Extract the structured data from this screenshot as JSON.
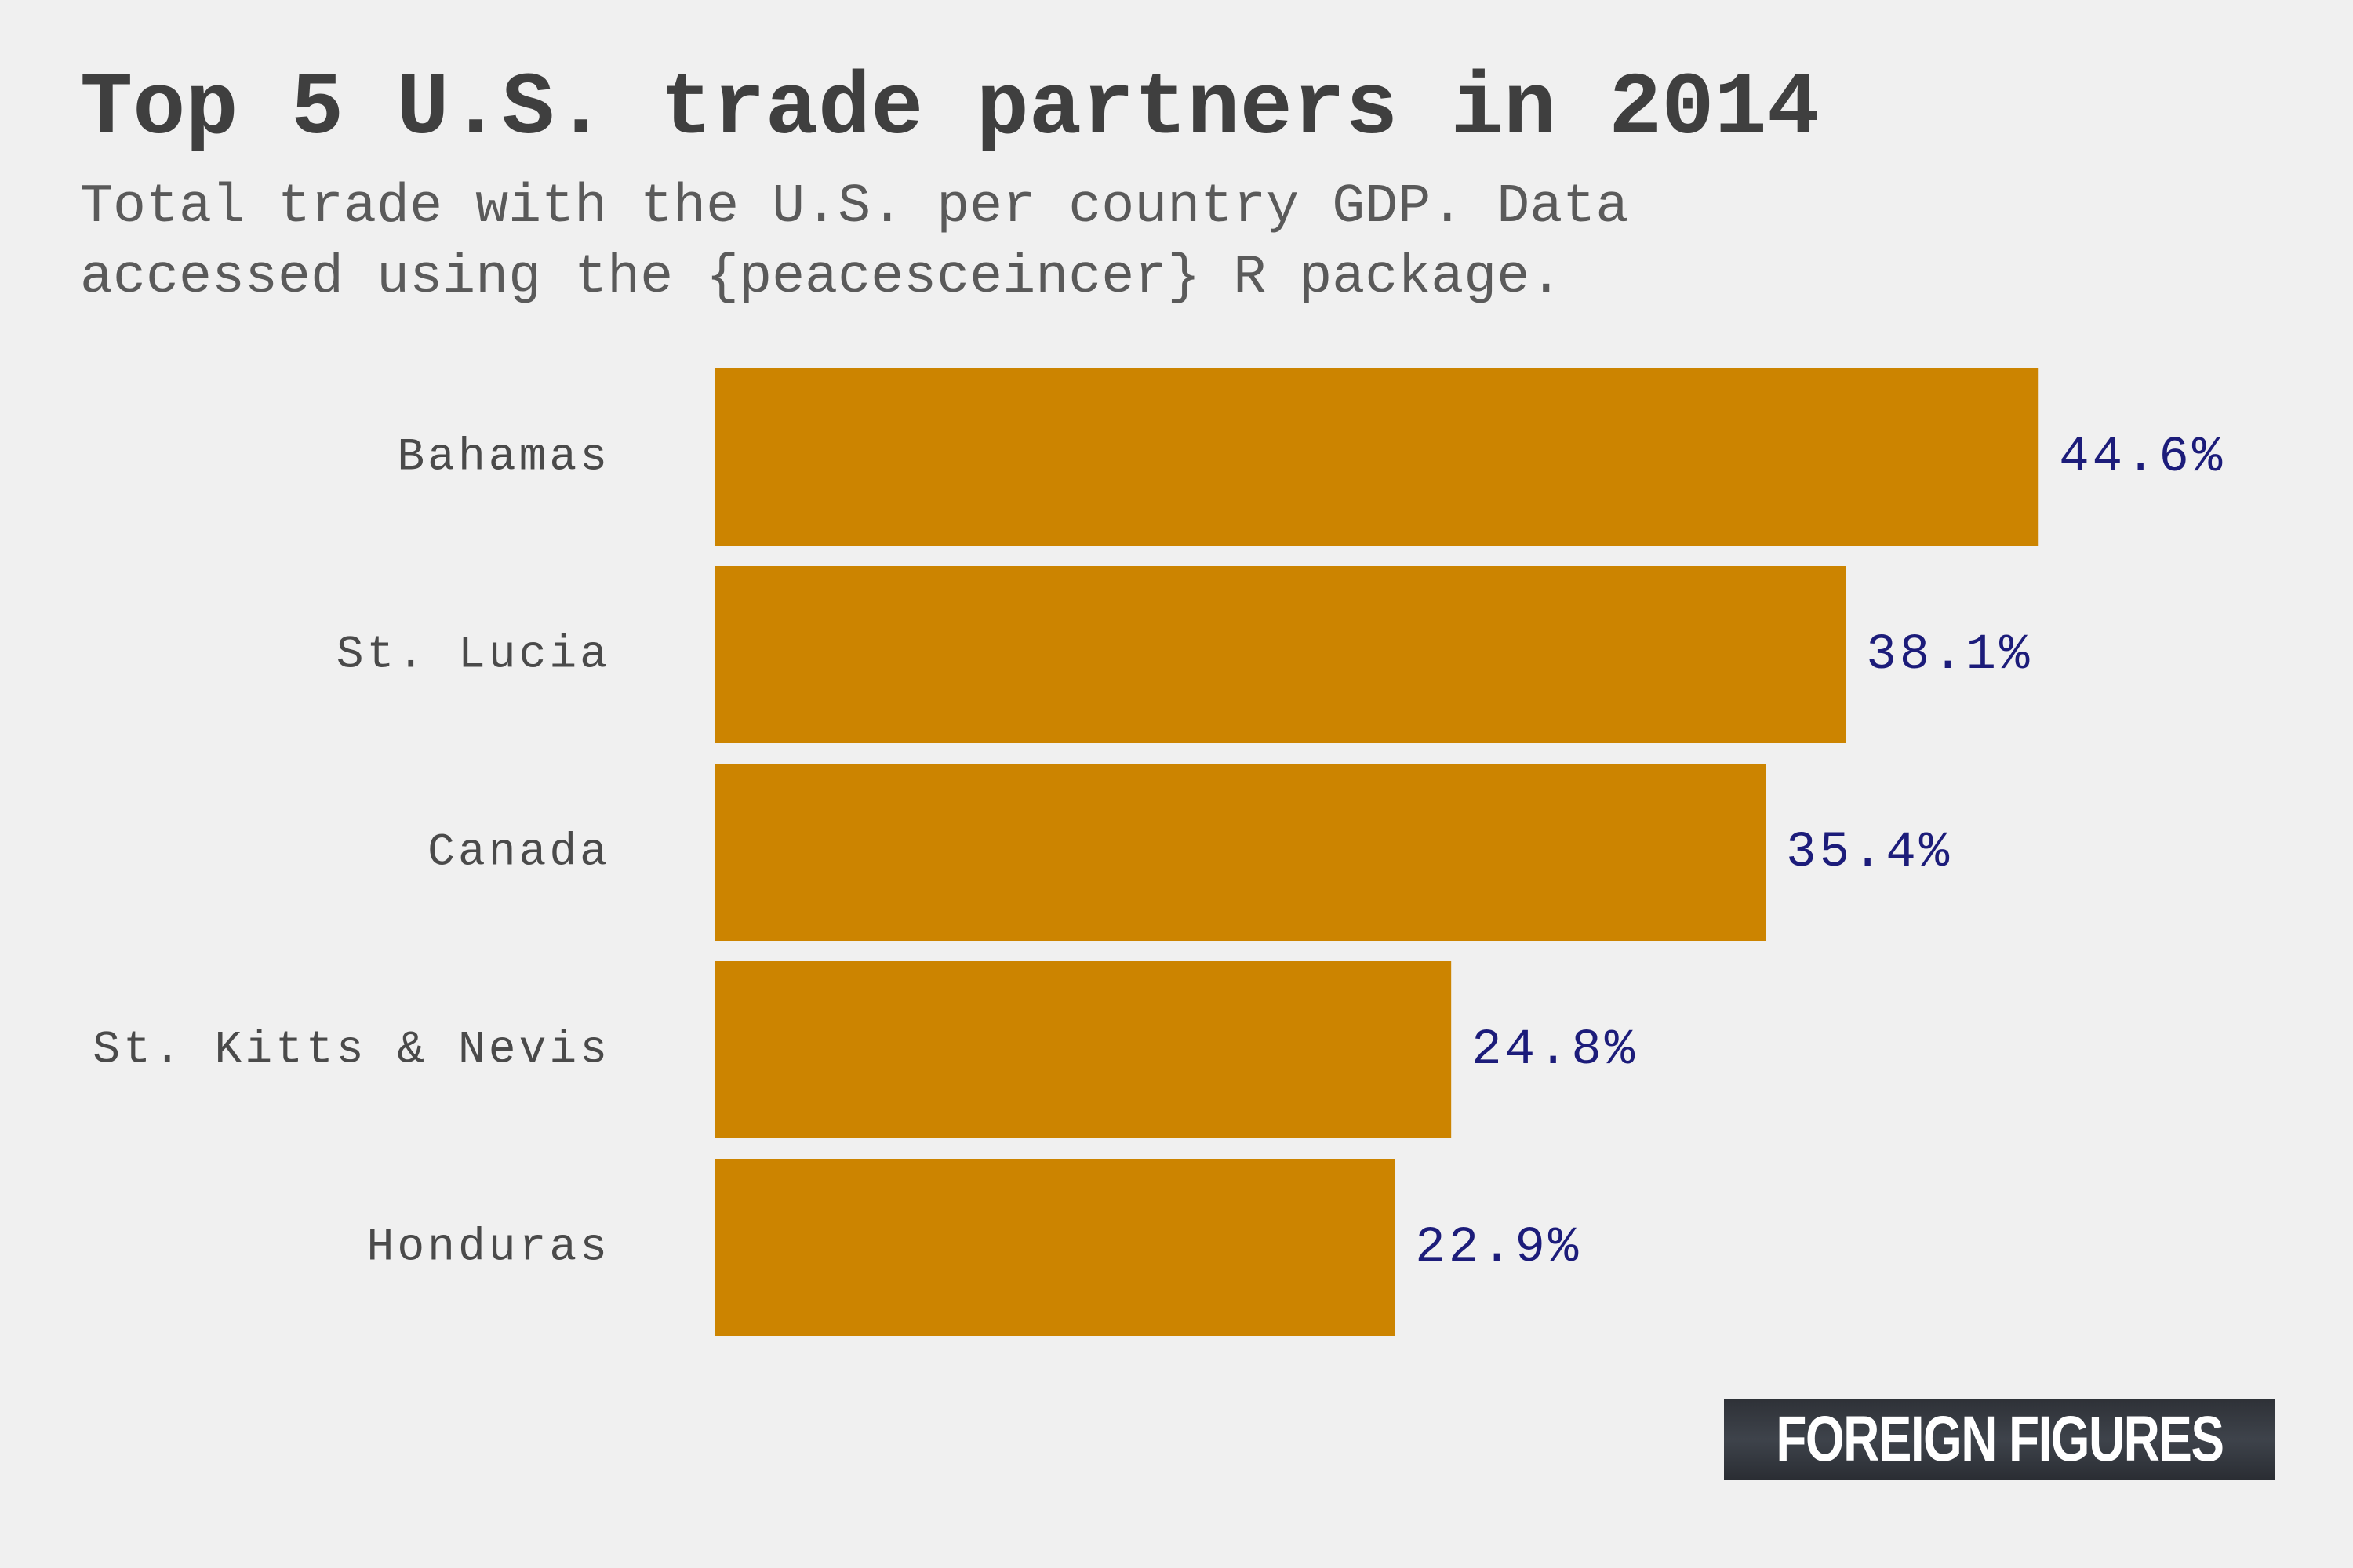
{
  "chart_data": {
    "type": "bar",
    "orientation": "horizontal",
    "title": "Top 5 U.S. trade partners in 2014",
    "subtitle": "Total trade with the U.S. per country GDP. Data\naccessed using the {peacesceincer} R package.",
    "categories": [
      "Bahamas",
      "St. Lucia",
      "Canada",
      "St. Kitts & Nevis",
      "Honduras"
    ],
    "values": [
      44.6,
      38.1,
      35.4,
      24.8,
      22.9
    ],
    "value_labels": [
      "44.6%",
      "38.1%",
      "35.4%",
      "24.8%",
      "22.9%"
    ],
    "xlim": [
      0,
      50
    ],
    "grid": false,
    "bar_color": "#cc8400",
    "label_color": "#1c1c7a"
  },
  "branding": {
    "logo_text": "FOREIGN FIGURES"
  }
}
